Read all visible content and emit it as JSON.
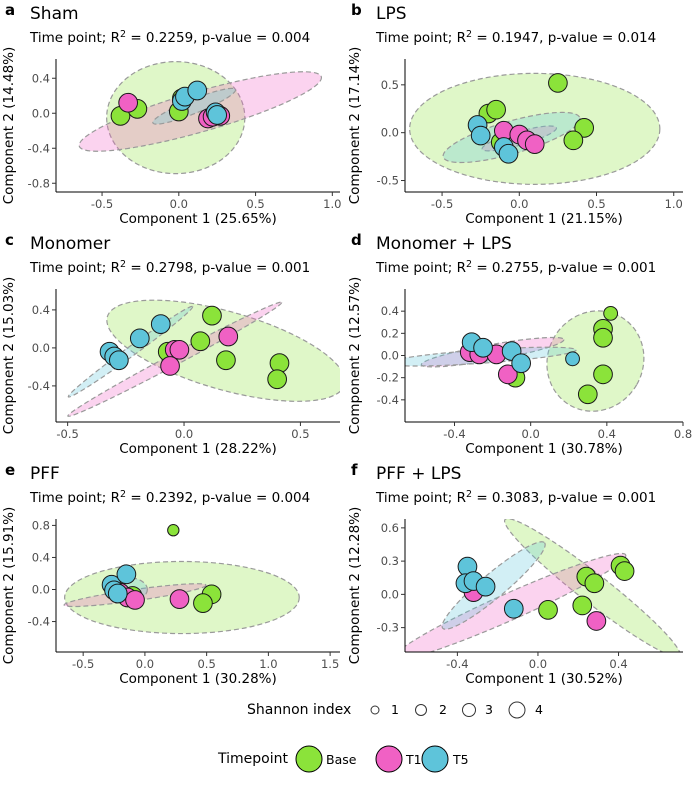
{
  "colors": {
    "Base": "#8be33a",
    "T1": "#f061c4",
    "T5": "#5ec4da"
  },
  "legend": {
    "size_title": "Shannon index",
    "size_labels": [
      "1",
      "2",
      "3",
      "4"
    ],
    "color_title": "Timepoint",
    "color_labels": [
      "Base",
      "T1",
      "T5"
    ]
  },
  "chart_data": [
    {
      "type": "scatter",
      "letter": "a",
      "title": "Sham",
      "subtitle_prefix": "Time point; R",
      "subtitle_sup": "2",
      "subtitle_suffix": " = 0.2259, p-value = 0.004",
      "xlabel": "Component 1 (25.65%)",
      "ylabel": "Component 2 (14.48%)",
      "xlim": [
        -0.8,
        1.05
      ],
      "ylim": [
        -0.9,
        0.62
      ],
      "xticks": [
        -0.5,
        0.0,
        0.5,
        1.0
      ],
      "xtick_labels": [
        "-0.5",
        "0.0",
        "0.5",
        "1.0"
      ],
      "yticks": [
        -0.8,
        -0.4,
        0.0,
        0.4
      ],
      "ytick_labels": [
        "-0.8",
        "-0.4",
        "0.0",
        "0.4"
      ],
      "ellipses": [
        {
          "group": "Base",
          "cx": -0.02,
          "cy": -0.05,
          "rx": 0.45,
          "ry": 0.64,
          "angle": 0
        },
        {
          "group": "T1",
          "cx": 0.14,
          "cy": 0.02,
          "rx": 0.82,
          "ry": 0.23,
          "angle": -16
        },
        {
          "group": "T5",
          "cx": 0.1,
          "cy": 0.08,
          "rx": 0.29,
          "ry": 0.08,
          "angle": -22
        }
      ],
      "points": [
        {
          "x": -0.38,
          "y": -0.03,
          "g": "Base",
          "s": 3.0
        },
        {
          "x": -0.27,
          "y": 0.05,
          "g": "Base",
          "s": 3.0
        },
        {
          "x": 0.0,
          "y": 0.02,
          "g": "Base",
          "s": 3.0
        },
        {
          "x": 0.02,
          "y": 0.17,
          "g": "Base",
          "s": 3.0
        },
        {
          "x": -0.33,
          "y": 0.12,
          "g": "T1",
          "s": 3.0
        },
        {
          "x": 0.19,
          "y": -0.06,
          "g": "T1",
          "s": 3.0
        },
        {
          "x": 0.22,
          "y": -0.04,
          "g": "T1",
          "s": 3.0
        },
        {
          "x": 0.27,
          "y": -0.03,
          "g": "T1",
          "s": 3.0
        },
        {
          "x": 0.02,
          "y": 0.14,
          "g": "T5",
          "s": 3.0
        },
        {
          "x": 0.04,
          "y": 0.19,
          "g": "T5",
          "s": 3.0
        },
        {
          "x": 0.12,
          "y": 0.26,
          "g": "T5",
          "s": 3.0
        },
        {
          "x": 0.24,
          "y": 0.01,
          "g": "T5",
          "s": 3.0
        },
        {
          "x": 0.25,
          "y": -0.02,
          "g": "T5",
          "s": 3.0
        }
      ]
    },
    {
      "type": "scatter",
      "letter": "b",
      "title": "LPS",
      "subtitle_prefix": "Time point; R",
      "subtitle_sup": "2",
      "subtitle_suffix": " = 0.1947, p-value = 0.014",
      "xlabel": "Component 1 (21.15%)",
      "ylabel": "Component 2 (17.14%)",
      "xlim": [
        -0.74,
        1.06
      ],
      "ylim": [
        -0.62,
        0.77
      ],
      "xticks": [
        -0.5,
        0.0,
        0.5,
        1.0
      ],
      "xtick_labels": [
        "-0.5",
        "0.0",
        "0.5",
        "1.0"
      ],
      "yticks": [
        -0.5,
        0.0,
        0.5
      ],
      "ytick_labels": [
        "-0.5",
        "0.0",
        "0.5"
      ],
      "ellipses": [
        {
          "group": "Base",
          "cx": 0.1,
          "cy": 0.04,
          "rx": 0.81,
          "ry": 0.58,
          "angle": 0
        },
        {
          "group": "T1",
          "cx": 0.0,
          "cy": -0.06,
          "rx": 0.25,
          "ry": 0.07,
          "angle": -16
        },
        {
          "group": "T5",
          "cx": -0.05,
          "cy": -0.05,
          "rx": 0.46,
          "ry": 0.17,
          "angle": -16
        }
      ],
      "points": [
        {
          "x": -0.2,
          "y": 0.2,
          "g": "Base",
          "s": 3.0
        },
        {
          "x": -0.15,
          "y": 0.24,
          "g": "Base",
          "s": 3.0
        },
        {
          "x": 0.25,
          "y": 0.52,
          "g": "Base",
          "s": 3.0
        },
        {
          "x": 0.42,
          "y": 0.05,
          "g": "Base",
          "s": 3.0
        },
        {
          "x": 0.35,
          "y": -0.08,
          "g": "Base",
          "s": 3.0
        },
        {
          "x": -0.12,
          "y": -0.1,
          "g": "Base",
          "s": 3.0
        },
        {
          "x": -0.1,
          "y": 0.02,
          "g": "T1",
          "s": 3.0
        },
        {
          "x": 0.0,
          "y": -0.02,
          "g": "T1",
          "s": 3.0
        },
        {
          "x": 0.05,
          "y": -0.08,
          "g": "T1",
          "s": 3.0
        },
        {
          "x": 0.1,
          "y": -0.12,
          "g": "T1",
          "s": 3.0
        },
        {
          "x": -0.27,
          "y": 0.08,
          "g": "T5",
          "s": 3.0
        },
        {
          "x": -0.25,
          "y": -0.03,
          "g": "T5",
          "s": 3.0
        },
        {
          "x": -0.1,
          "y": -0.15,
          "g": "T5",
          "s": 3.0
        },
        {
          "x": -0.07,
          "y": -0.22,
          "g": "T5",
          "s": 3.0
        }
      ]
    },
    {
      "type": "scatter",
      "letter": "c",
      "title": "Monomer",
      "subtitle_prefix": "Time point; R",
      "subtitle_sup": "2",
      "subtitle_suffix": " = 0.2798, p-value = 0.001",
      "xlabel": "Component 1 (28.22%)",
      "ylabel": "Component 2 (15.03%)",
      "xlim": [
        -0.55,
        0.67
      ],
      "ylim": [
        -0.78,
        0.62
      ],
      "xticks": [
        -0.5,
        0.0,
        0.5
      ],
      "xtick_labels": [
        "-0.5",
        "0.0",
        "0.5"
      ],
      "yticks": [
        -0.4,
        0.0,
        0.4
      ],
      "ytick_labels": [
        "-0.4",
        "0.0",
        "0.4"
      ],
      "ellipses": [
        {
          "group": "Base",
          "cx": 0.18,
          "cy": -0.03,
          "rx": 0.53,
          "ry": 0.41,
          "angle": 16
        },
        {
          "group": "T1",
          "cx": -0.04,
          "cy": -0.12,
          "rx": 0.52,
          "ry": 0.06,
          "angle": -28
        },
        {
          "group": "T5",
          "cx": -0.23,
          "cy": -0.04,
          "rx": 0.33,
          "ry": 0.05,
          "angle": -36
        }
      ],
      "points": [
        {
          "x": -0.07,
          "y": -0.04,
          "g": "Base",
          "s": 3.0
        },
        {
          "x": 0.07,
          "y": 0.07,
          "g": "Base",
          "s": 3.0
        },
        {
          "x": 0.12,
          "y": 0.34,
          "g": "Base",
          "s": 3.0
        },
        {
          "x": 0.18,
          "y": -0.13,
          "g": "Base",
          "s": 3.0
        },
        {
          "x": 0.41,
          "y": -0.16,
          "g": "Base",
          "s": 3.0
        },
        {
          "x": 0.4,
          "y": -0.33,
          "g": "Base",
          "s": 3.0
        },
        {
          "x": -0.04,
          "y": -0.02,
          "g": "T1",
          "s": 3.0
        },
        {
          "x": -0.02,
          "y": -0.02,
          "g": "T1",
          "s": 3.0
        },
        {
          "x": -0.06,
          "y": -0.19,
          "g": "T1",
          "s": 3.0
        },
        {
          "x": 0.19,
          "y": 0.12,
          "g": "T1",
          "s": 3.0
        },
        {
          "x": -0.32,
          "y": -0.04,
          "g": "T5",
          "s": 3.0
        },
        {
          "x": -0.3,
          "y": -0.09,
          "g": "T5",
          "s": 3.0
        },
        {
          "x": -0.28,
          "y": -0.13,
          "g": "T5",
          "s": 3.0
        },
        {
          "x": -0.19,
          "y": 0.1,
          "g": "T5",
          "s": 3.0
        },
        {
          "x": -0.1,
          "y": 0.25,
          "g": "T5",
          "s": 3.0
        }
      ]
    },
    {
      "type": "scatter",
      "letter": "d",
      "title": "Monomer + LPS",
      "subtitle_prefix": "Time point; R",
      "subtitle_sup": "2",
      "subtitle_suffix": " = 0.2755, p-value = 0.001",
      "xlabel": "Component 1 (30.78%)",
      "ylabel": "Component 2 (12.57%)",
      "xlim": [
        -0.66,
        0.8
      ],
      "ylim": [
        -0.6,
        0.6
      ],
      "xticks": [
        -0.4,
        0.0,
        0.4,
        0.8
      ],
      "xtick_labels": [
        "-0.4",
        "0.0",
        "0.4",
        "0.8"
      ],
      "yticks": [
        -0.4,
        -0.2,
        0.0,
        0.2,
        0.4
      ],
      "ytick_labels": [
        "-0.4",
        "-0.2",
        "0.0",
        "0.2",
        "0.4"
      ],
      "ellipses": [
        {
          "group": "Base",
          "cx": 0.34,
          "cy": -0.05,
          "rx": 0.25,
          "ry": 0.46,
          "angle": 30
        },
        {
          "group": "T1",
          "cx": -0.2,
          "cy": 0.03,
          "rx": 0.38,
          "ry": 0.07,
          "angle": -10
        },
        {
          "group": "T5",
          "cx": -0.26,
          "cy": -0.01,
          "rx": 0.5,
          "ry": 0.06,
          "angle": -4
        }
      ],
      "points": [
        {
          "x": 0.42,
          "y": 0.38,
          "g": "Base",
          "s": 2.0
        },
        {
          "x": 0.38,
          "y": 0.24,
          "g": "Base",
          "s": 3.0
        },
        {
          "x": 0.38,
          "y": 0.16,
          "g": "Base",
          "s": 3.0
        },
        {
          "x": 0.38,
          "y": -0.17,
          "g": "Base",
          "s": 3.0
        },
        {
          "x": 0.3,
          "y": -0.35,
          "g": "Base",
          "s": 3.0
        },
        {
          "x": -0.08,
          "y": -0.2,
          "g": "Base",
          "s": 3.0
        },
        {
          "x": -0.32,
          "y": 0.03,
          "g": "T1",
          "s": 3.0
        },
        {
          "x": -0.27,
          "y": 0.01,
          "g": "T1",
          "s": 3.0
        },
        {
          "x": -0.18,
          "y": 0.01,
          "g": "T1",
          "s": 3.0
        },
        {
          "x": -0.12,
          "y": -0.17,
          "g": "T1",
          "s": 3.0
        },
        {
          "x": -0.31,
          "y": 0.12,
          "g": "T5",
          "s": 3.0
        },
        {
          "x": -0.25,
          "y": 0.07,
          "g": "T5",
          "s": 3.0
        },
        {
          "x": -0.1,
          "y": 0.04,
          "g": "T5",
          "s": 3.0
        },
        {
          "x": -0.05,
          "y": -0.07,
          "g": "T5",
          "s": 3.0
        },
        {
          "x": 0.22,
          "y": -0.03,
          "g": "T5",
          "s": 2.0
        }
      ]
    },
    {
      "type": "scatter",
      "letter": "e",
      "title": "PFF",
      "subtitle_prefix": "Time point; R",
      "subtitle_sup": "2",
      "subtitle_suffix": " = 0.2392, p-value = 0.004",
      "xlabel": "Component 1 (30.28%)",
      "ylabel": "Component 2 (15.91%)",
      "xlim": [
        -0.72,
        1.58
      ],
      "ylim": [
        -0.78,
        0.88
      ],
      "xticks": [
        -0.5,
        0.0,
        0.5,
        1.0,
        1.5
      ],
      "xtick_labels": [
        "-0.5",
        "0.0",
        "0.5",
        "1.0",
        "1.5"
      ],
      "yticks": [
        -0.4,
        0.0,
        0.4,
        0.8
      ],
      "ytick_labels": [
        "-0.4",
        "0.0",
        "0.4",
        "0.8"
      ],
      "ellipses": [
        {
          "group": "Base",
          "cx": 0.3,
          "cy": -0.1,
          "rx": 0.95,
          "ry": 0.45,
          "angle": 0
        },
        {
          "group": "T1",
          "cx": -0.08,
          "cy": -0.07,
          "rx": 0.58,
          "ry": 0.07,
          "angle": -8
        },
        {
          "group": "T5",
          "cx": -0.14,
          "cy": 0.0,
          "rx": 0.16,
          "ry": 0.15,
          "angle": 0
        }
      ],
      "points": [
        {
          "x": 0.23,
          "y": 0.74,
          "g": "Base",
          "s": 1.5
        },
        {
          "x": 0.54,
          "y": -0.06,
          "g": "Base",
          "s": 3.0
        },
        {
          "x": 0.47,
          "y": -0.17,
          "g": "Base",
          "s": 3.0
        },
        {
          "x": -0.1,
          "y": -0.08,
          "g": "Base",
          "s": 3.0
        },
        {
          "x": -0.2,
          "y": -0.04,
          "g": "T1",
          "s": 3.0
        },
        {
          "x": -0.14,
          "y": -0.1,
          "g": "T1",
          "s": 3.0
        },
        {
          "x": -0.08,
          "y": -0.13,
          "g": "T1",
          "s": 3.0
        },
        {
          "x": 0.28,
          "y": -0.12,
          "g": "T1",
          "s": 3.0
        },
        {
          "x": -0.27,
          "y": 0.06,
          "g": "T5",
          "s": 3.0
        },
        {
          "x": -0.25,
          "y": -0.01,
          "g": "T5",
          "s": 3.0
        },
        {
          "x": -0.22,
          "y": -0.05,
          "g": "T5",
          "s": 3.0
        },
        {
          "x": -0.15,
          "y": 0.19,
          "g": "T5",
          "s": 3.0
        }
      ]
    },
    {
      "type": "scatter",
      "letter": "f",
      "title": "PFF + LPS",
      "subtitle_prefix": "Time point; R",
      "subtitle_sup": "2",
      "subtitle_suffix": " = 0.3083, p-value = 0.001",
      "xlabel": "Component 1 (30.52%)",
      "ylabel": "Component 2 (12.28%)",
      "xlim": [
        -0.66,
        0.72
      ],
      "ylim": [
        -0.52,
        0.68
      ],
      "xticks": [
        -0.4,
        0.0,
        0.4
      ],
      "xtick_labels": [
        "-0.4",
        "0.0",
        "0.4"
      ],
      "yticks": [
        -0.3,
        0.0,
        0.3,
        0.6
      ],
      "ytick_labels": [
        "-0.3",
        "0.0",
        "0.3",
        "0.6"
      ],
      "ellipses": [
        {
          "group": "Base",
          "cx": 0.27,
          "cy": 0.06,
          "rx": 0.55,
          "ry": 0.13,
          "angle": 38
        },
        {
          "group": "T1",
          "cx": -0.14,
          "cy": -0.11,
          "rx": 0.63,
          "ry": 0.12,
          "angle": -24
        },
        {
          "group": "T5",
          "cx": -0.22,
          "cy": 0.08,
          "rx": 0.33,
          "ry": 0.11,
          "angle": -40
        }
      ],
      "points": [
        {
          "x": 0.41,
          "y": 0.26,
          "g": "Base",
          "s": 3.0
        },
        {
          "x": 0.43,
          "y": 0.21,
          "g": "Base",
          "s": 3.0
        },
        {
          "x": 0.24,
          "y": 0.16,
          "g": "Base",
          "s": 3.0
        },
        {
          "x": 0.28,
          "y": 0.1,
          "g": "Base",
          "s": 3.0
        },
        {
          "x": 0.22,
          "y": -0.1,
          "g": "Base",
          "s": 3.0
        },
        {
          "x": 0.05,
          "y": -0.14,
          "g": "Base",
          "s": 3.0
        },
        {
          "x": -0.32,
          "y": 0.02,
          "g": "T1",
          "s": 3.0
        },
        {
          "x": 0.29,
          "y": -0.24,
          "g": "T1",
          "s": 3.0
        },
        {
          "x": -0.35,
          "y": 0.25,
          "g": "T5",
          "s": 3.0
        },
        {
          "x": -0.36,
          "y": 0.1,
          "g": "T5",
          "s": 3.0
        },
        {
          "x": -0.32,
          "y": 0.12,
          "g": "T5",
          "s": 3.0
        },
        {
          "x": -0.26,
          "y": 0.07,
          "g": "T5",
          "s": 3.0
        },
        {
          "x": -0.12,
          "y": -0.13,
          "g": "T5",
          "s": 3.0
        }
      ]
    }
  ]
}
